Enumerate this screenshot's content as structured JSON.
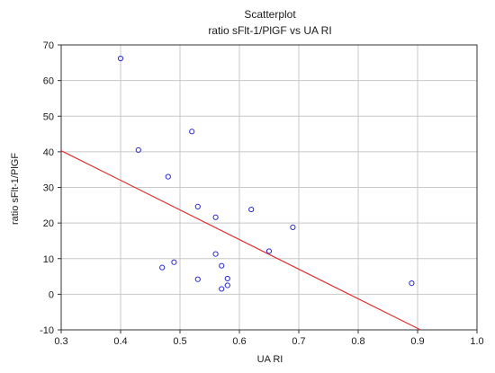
{
  "chart_data": {
    "type": "scatter",
    "title": "Scatterplot",
    "subtitle": "ratio sFlt-1/PlGF vs UA RI",
    "xlabel": "UA RI",
    "ylabel": "ratio sFlt-1/PlGF",
    "xlim": [
      0.3,
      1.0
    ],
    "ylim": [
      -10,
      70
    ],
    "x_ticks": [
      0.3,
      0.4,
      0.5,
      0.6,
      0.7,
      0.8,
      0.9,
      1.0
    ],
    "x_tick_labels": [
      "0.3",
      "0.4",
      "0.5",
      "0.6",
      "0.7",
      "0.8",
      "0.9",
      "1.0"
    ],
    "y_ticks": [
      -10,
      0,
      10,
      20,
      30,
      40,
      50,
      60,
      70
    ],
    "y_tick_labels": [
      "-10",
      "0",
      "10",
      "20",
      "30",
      "40",
      "50",
      "60",
      "70"
    ],
    "grid": true,
    "points": [
      {
        "x": 0.4,
        "y": 66.2
      },
      {
        "x": 0.43,
        "y": 40.5
      },
      {
        "x": 0.47,
        "y": 7.5
      },
      {
        "x": 0.48,
        "y": 33.0
      },
      {
        "x": 0.49,
        "y": 9.0
      },
      {
        "x": 0.52,
        "y": 45.7
      },
      {
        "x": 0.53,
        "y": 24.6
      },
      {
        "x": 0.53,
        "y": 4.2
      },
      {
        "x": 0.56,
        "y": 21.6
      },
      {
        "x": 0.56,
        "y": 11.3
      },
      {
        "x": 0.57,
        "y": 8.0
      },
      {
        "x": 0.57,
        "y": 1.5
      },
      {
        "x": 0.58,
        "y": 4.4
      },
      {
        "x": 0.58,
        "y": 2.5
      },
      {
        "x": 0.62,
        "y": 23.8
      },
      {
        "x": 0.65,
        "y": 12.1
      },
      {
        "x": 0.69,
        "y": 18.8
      },
      {
        "x": 0.89,
        "y": 3.1
      }
    ],
    "trendline": {
      "x": [
        0.3,
        0.905
      ],
      "y": [
        40.3,
        -10
      ]
    },
    "colors": {
      "points": "#2a2ad6",
      "trendline": "#e03030",
      "grid": "#c8c8c8",
      "axis": "#333333"
    }
  }
}
